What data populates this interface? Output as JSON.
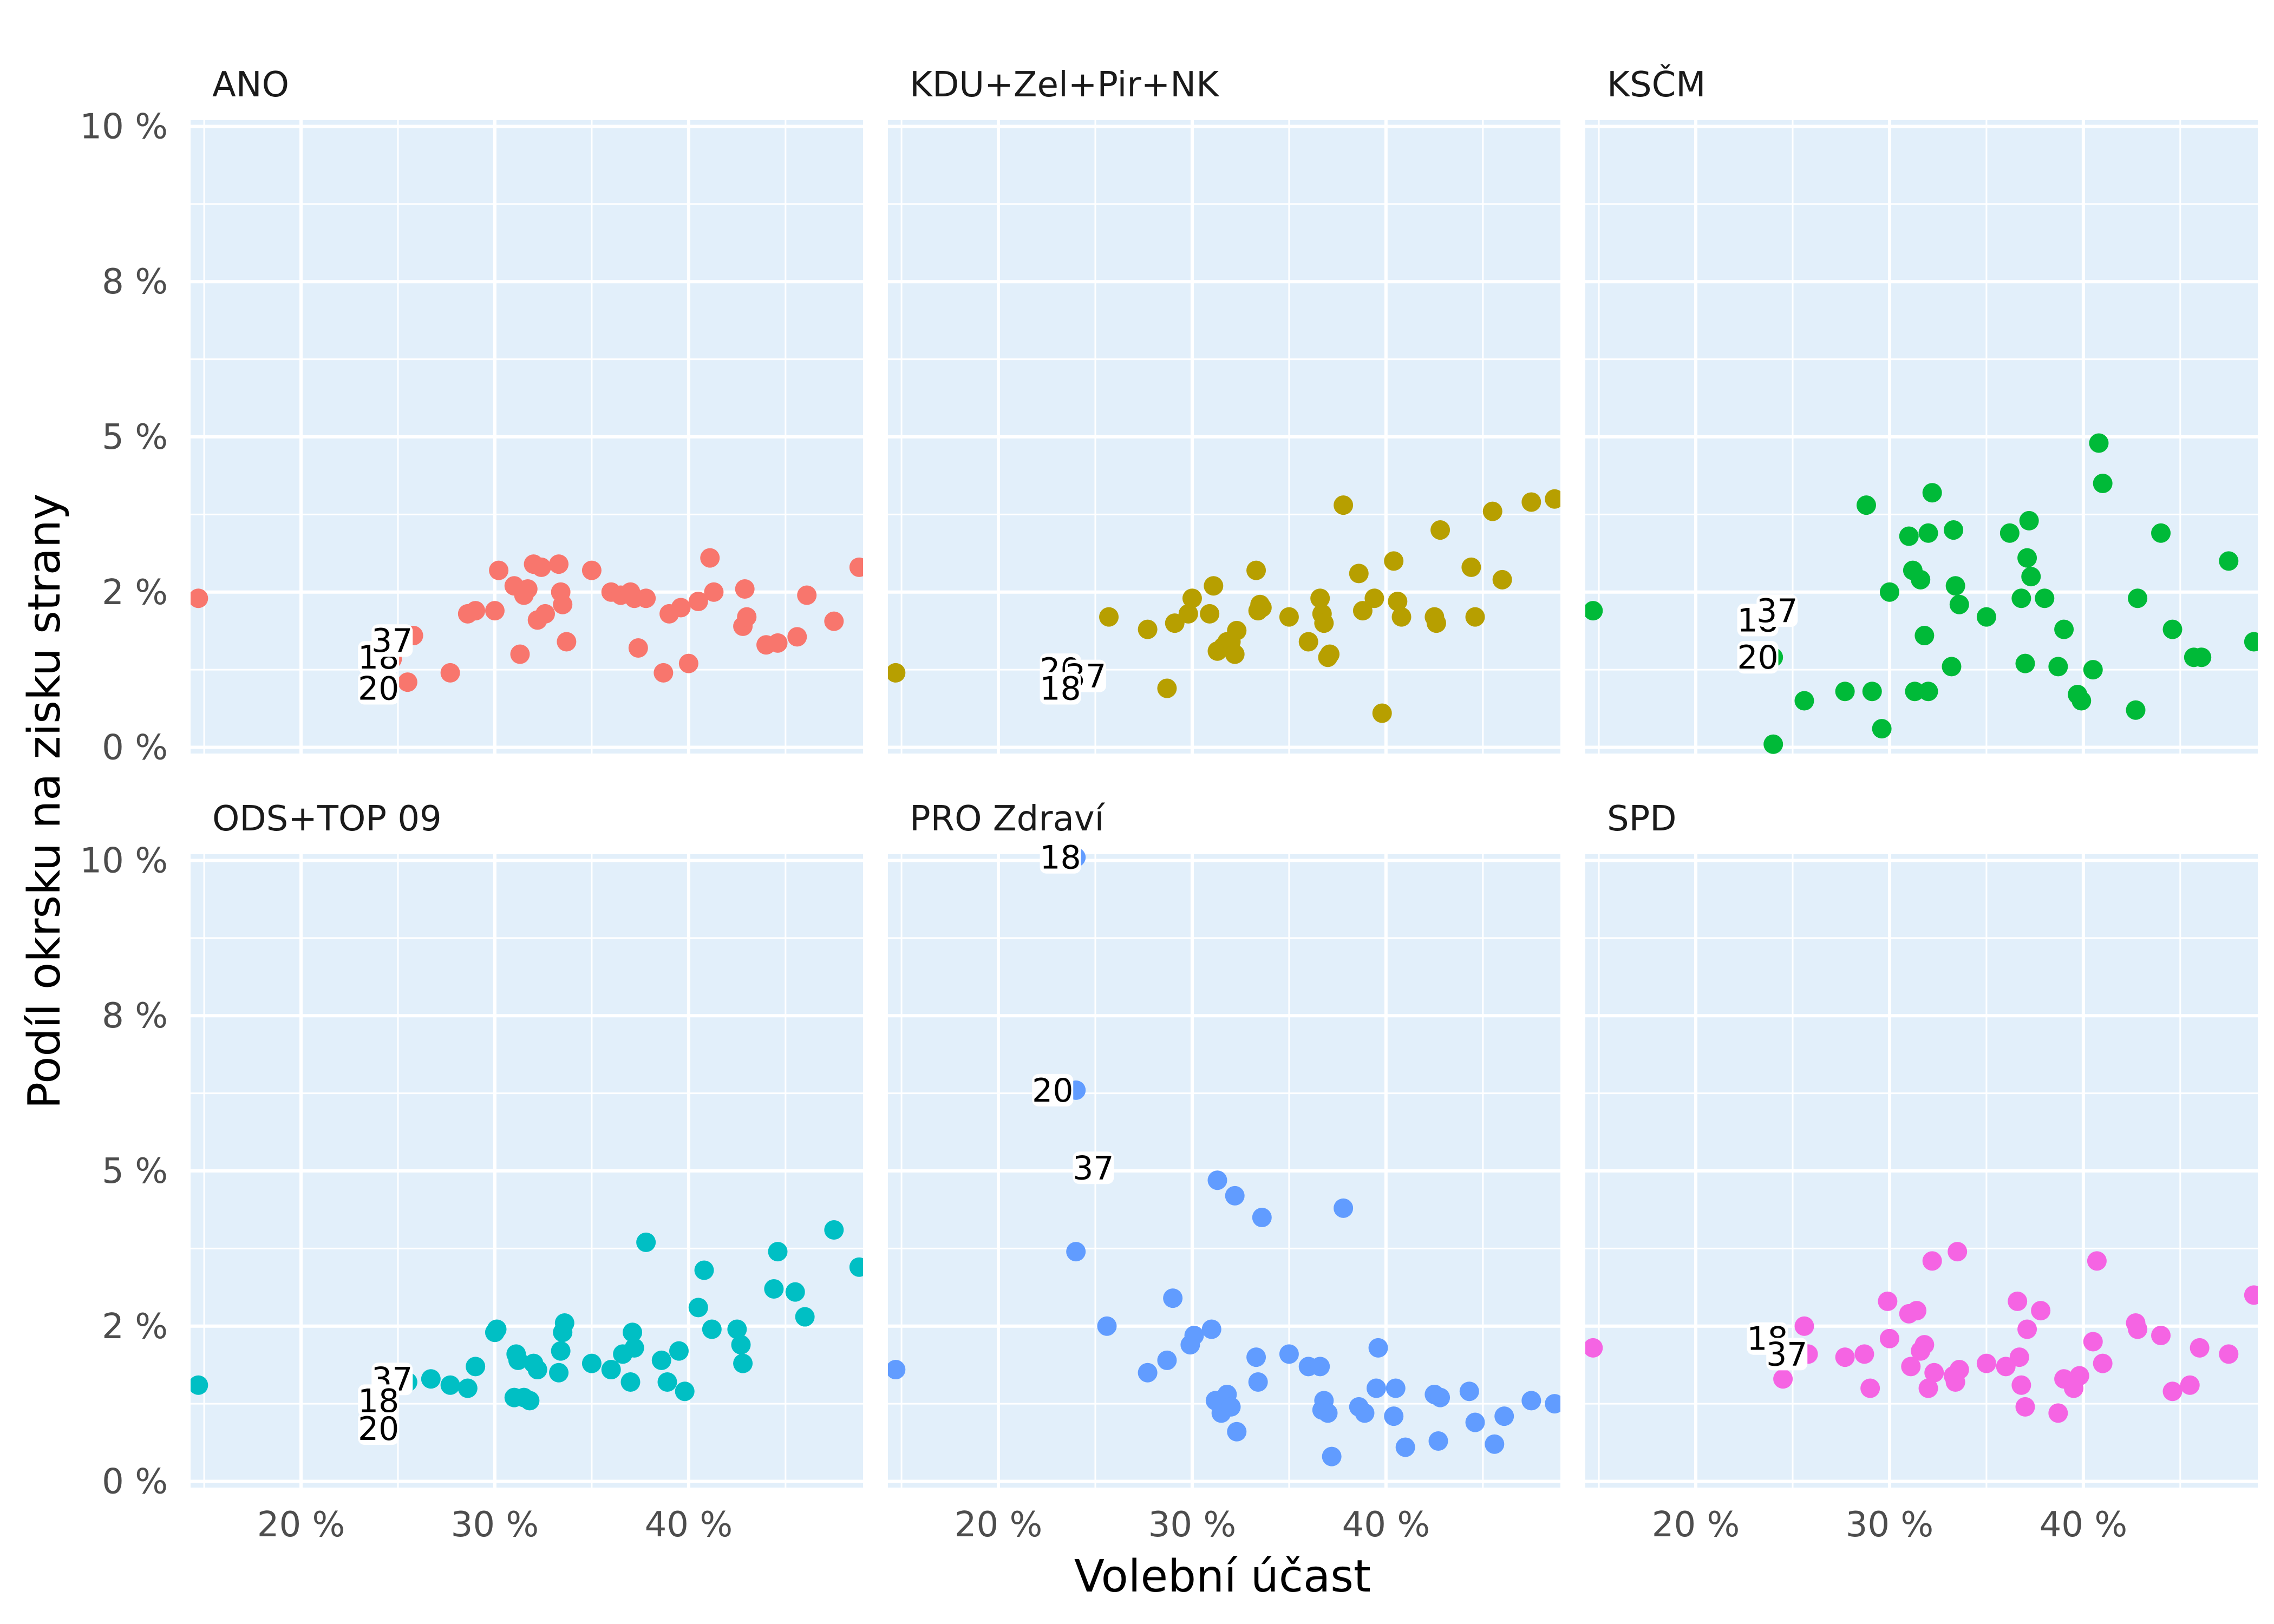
{
  "chart_data": {
    "type": "scatter",
    "xlabel": "Volební účast",
    "ylabel": "Podíl okrsku na zisku strany",
    "xlim": [
      0.143,
      0.49
    ],
    "ylim": [
      -0.1,
      10.1
    ],
    "x_ticks": [
      0.2,
      0.3,
      0.4
    ],
    "x_tick_labels": [
      "20 %",
      "30 %",
      "40 %"
    ],
    "y_ticks": [
      0,
      2.5,
      5,
      7.5,
      10
    ],
    "y_tick_labels": [
      "0 %",
      "2 %",
      "5 %",
      "8 %",
      "10 %"
    ],
    "grid": true,
    "facets": [
      {
        "name": "ANO",
        "color": "#F8766D",
        "points": [
          [
            0.147,
            2.4
          ],
          [
            0.235,
            0.9
          ],
          [
            0.238,
            1.15
          ],
          [
            0.242,
            1.2
          ],
          [
            0.247,
            1.42
          ],
          [
            0.255,
            1.05
          ],
          [
            0.258,
            1.8
          ],
          [
            0.277,
            1.2
          ],
          [
            0.286,
            2.15
          ],
          [
            0.29,
            2.2
          ],
          [
            0.3,
            2.2
          ],
          [
            0.302,
            2.85
          ],
          [
            0.31,
            2.6
          ],
          [
            0.313,
            1.5
          ],
          [
            0.315,
            2.45
          ],
          [
            0.317,
            2.55
          ],
          [
            0.32,
            2.95
          ],
          [
            0.322,
            2.05
          ],
          [
            0.324,
            2.9
          ],
          [
            0.326,
            2.15
          ],
          [
            0.333,
            2.95
          ],
          [
            0.334,
            2.5
          ],
          [
            0.335,
            2.3
          ],
          [
            0.337,
            1.7
          ],
          [
            0.35,
            2.85
          ],
          [
            0.36,
            2.5
          ],
          [
            0.365,
            2.45
          ],
          [
            0.37,
            2.5
          ],
          [
            0.372,
            2.4
          ],
          [
            0.374,
            1.6
          ],
          [
            0.378,
            2.4
          ],
          [
            0.387,
            1.2
          ],
          [
            0.39,
            2.15
          ],
          [
            0.396,
            2.25
          ],
          [
            0.4,
            1.35
          ],
          [
            0.405,
            2.35
          ],
          [
            0.411,
            3.05
          ],
          [
            0.413,
            2.5
          ],
          [
            0.429,
            2.55
          ],
          [
            0.428,
            1.95
          ],
          [
            0.43,
            2.1
          ],
          [
            0.44,
            1.65
          ],
          [
            0.446,
            1.68
          ],
          [
            0.456,
            1.78
          ],
          [
            0.461,
            2.45
          ],
          [
            0.475,
            2.03
          ],
          [
            0.488,
            2.9
          ]
        ],
        "labels": [
          {
            "text": "18",
            "x": 0.24,
            "y": 1.45
          },
          {
            "text": "37",
            "x": 0.247,
            "y": 1.72
          },
          {
            "text": "20",
            "x": 0.24,
            "y": 0.95
          }
        ]
      },
      {
        "name": "KDU+Zel+Pir+NK",
        "color": "#B79F00",
        "points": [
          [
            0.147,
            1.2
          ],
          [
            0.245,
            1.2
          ],
          [
            0.257,
            2.1
          ],
          [
            0.277,
            1.9
          ],
          [
            0.287,
            0.95
          ],
          [
            0.291,
            2.0
          ],
          [
            0.298,
            2.15
          ],
          [
            0.3,
            2.4
          ],
          [
            0.309,
            2.15
          ],
          [
            0.311,
            2.6
          ],
          [
            0.313,
            1.55
          ],
          [
            0.316,
            1.62
          ],
          [
            0.318,
            1.7
          ],
          [
            0.32,
            1.7
          ],
          [
            0.322,
            1.5
          ],
          [
            0.323,
            1.88
          ],
          [
            0.333,
            2.85
          ],
          [
            0.334,
            2.2
          ],
          [
            0.335,
            2.3
          ],
          [
            0.336,
            2.25
          ],
          [
            0.35,
            2.1
          ],
          [
            0.36,
            1.7
          ],
          [
            0.366,
            2.4
          ],
          [
            0.367,
            2.15
          ],
          [
            0.368,
            2.0
          ],
          [
            0.37,
            1.45
          ],
          [
            0.371,
            1.5
          ],
          [
            0.378,
            3.9
          ],
          [
            0.386,
            2.8
          ],
          [
            0.388,
            2.2
          ],
          [
            0.394,
            2.4
          ],
          [
            0.398,
            0.55
          ],
          [
            0.404,
            3.0
          ],
          [
            0.406,
            2.35
          ],
          [
            0.408,
            2.1
          ],
          [
            0.425,
            2.1
          ],
          [
            0.426,
            2.0
          ],
          [
            0.428,
            3.5
          ],
          [
            0.444,
            2.9
          ],
          [
            0.446,
            2.1
          ],
          [
            0.455,
            3.8
          ],
          [
            0.46,
            2.7
          ],
          [
            0.475,
            3.95
          ],
          [
            0.487,
            4.0
          ]
        ],
        "labels": [
          {
            "text": "20",
            "x": 0.232,
            "y": 1.25
          },
          {
            "text": "37",
            "x": 0.245,
            "y": 1.15
          },
          {
            "text": "18",
            "x": 0.232,
            "y": 0.95
          }
        ]
      },
      {
        "name": "KSČM",
        "color": "#00BA38",
        "points": [
          [
            0.147,
            2.2
          ],
          [
            0.24,
            1.45
          ],
          [
            0.245,
            2.15
          ],
          [
            0.24,
            0.05
          ],
          [
            0.256,
            0.75
          ],
          [
            0.277,
            0.9
          ],
          [
            0.288,
            3.9
          ],
          [
            0.291,
            0.9
          ],
          [
            0.296,
            0.3
          ],
          [
            0.3,
            2.5
          ],
          [
            0.31,
            3.4
          ],
          [
            0.312,
            2.85
          ],
          [
            0.313,
            0.9
          ],
          [
            0.316,
            2.7
          ],
          [
            0.318,
            1.8
          ],
          [
            0.32,
            0.9
          ],
          [
            0.32,
            3.45
          ],
          [
            0.322,
            4.1
          ],
          [
            0.332,
            1.3
          ],
          [
            0.333,
            3.5
          ],
          [
            0.334,
            2.6
          ],
          [
            0.336,
            2.3
          ],
          [
            0.35,
            2.1
          ],
          [
            0.362,
            3.45
          ],
          [
            0.368,
            2.4
          ],
          [
            0.37,
            1.35
          ],
          [
            0.371,
            3.05
          ],
          [
            0.372,
            3.65
          ],
          [
            0.373,
            2.75
          ],
          [
            0.38,
            2.4
          ],
          [
            0.387,
            1.3
          ],
          [
            0.39,
            1.9
          ],
          [
            0.397,
            0.85
          ],
          [
            0.399,
            0.75
          ],
          [
            0.405,
            1.25
          ],
          [
            0.408,
            4.9
          ],
          [
            0.41,
            4.25
          ],
          [
            0.427,
            0.6
          ],
          [
            0.428,
            2.4
          ],
          [
            0.44,
            3.45
          ],
          [
            0.446,
            1.9
          ],
          [
            0.457,
            1.45
          ],
          [
            0.461,
            1.45
          ],
          [
            0.475,
            3.0
          ],
          [
            0.488,
            1.7
          ]
        ],
        "labels": [
          {
            "text": "18",
            "x": 0.232,
            "y": 2.05
          },
          {
            "text": "37",
            "x": 0.242,
            "y": 2.2
          },
          {
            "text": "20",
            "x": 0.232,
            "y": 1.45
          }
        ]
      },
      {
        "name": "ODS+TOP 09",
        "color": "#00BFC4",
        "points": [
          [
            0.147,
            1.55
          ],
          [
            0.24,
            0.85
          ],
          [
            0.243,
            1.28
          ],
          [
            0.255,
            1.6
          ],
          [
            0.267,
            1.65
          ],
          [
            0.277,
            1.55
          ],
          [
            0.286,
            1.5
          ],
          [
            0.29,
            1.85
          ],
          [
            0.3,
            2.4
          ],
          [
            0.301,
            2.45
          ],
          [
            0.31,
            1.35
          ],
          [
            0.311,
            2.05
          ],
          [
            0.312,
            1.95
          ],
          [
            0.315,
            1.35
          ],
          [
            0.318,
            1.3
          ],
          [
            0.32,
            1.9
          ],
          [
            0.322,
            1.8
          ],
          [
            0.333,
            1.75
          ],
          [
            0.334,
            2.1
          ],
          [
            0.335,
            2.4
          ],
          [
            0.336,
            2.55
          ],
          [
            0.35,
            1.9
          ],
          [
            0.36,
            1.8
          ],
          [
            0.366,
            2.05
          ],
          [
            0.37,
            1.6
          ],
          [
            0.371,
            2.4
          ],
          [
            0.372,
            2.15
          ],
          [
            0.378,
            3.85
          ],
          [
            0.386,
            1.95
          ],
          [
            0.389,
            1.6
          ],
          [
            0.395,
            2.1
          ],
          [
            0.398,
            1.45
          ],
          [
            0.405,
            2.8
          ],
          [
            0.408,
            3.4
          ],
          [
            0.412,
            2.45
          ],
          [
            0.425,
            2.45
          ],
          [
            0.427,
            2.2
          ],
          [
            0.428,
            1.9
          ],
          [
            0.444,
            3.1
          ],
          [
            0.446,
            3.7
          ],
          [
            0.455,
            3.05
          ],
          [
            0.46,
            2.65
          ],
          [
            0.475,
            4.05
          ],
          [
            0.488,
            3.45
          ]
        ],
        "labels": [
          {
            "text": "37",
            "x": 0.247,
            "y": 1.65
          },
          {
            "text": "18",
            "x": 0.24,
            "y": 1.3
          },
          {
            "text": "20",
            "x": 0.24,
            "y": 0.85
          }
        ]
      },
      {
        "name": "PRO Zdraví",
        "color": "#619CFF",
        "points": [
          [
            0.147,
            1.8
          ],
          [
            0.24,
            10.05
          ],
          [
            0.24,
            6.3
          ],
          [
            0.24,
            3.7
          ],
          [
            0.246,
            5.05
          ],
          [
            0.256,
            2.5
          ],
          [
            0.277,
            1.75
          ],
          [
            0.287,
            1.95
          ],
          [
            0.29,
            2.95
          ],
          [
            0.299,
            2.2
          ],
          [
            0.301,
            2.35
          ],
          [
            0.31,
            2.45
          ],
          [
            0.312,
            1.3
          ],
          [
            0.313,
            4.85
          ],
          [
            0.315,
            1.1
          ],
          [
            0.318,
            1.4
          ],
          [
            0.32,
            1.2
          ],
          [
            0.322,
            4.6
          ],
          [
            0.323,
            0.8
          ],
          [
            0.333,
            2.0
          ],
          [
            0.334,
            1.6
          ],
          [
            0.336,
            4.25
          ],
          [
            0.35,
            2.05
          ],
          [
            0.36,
            1.85
          ],
          [
            0.366,
            1.85
          ],
          [
            0.367,
            1.15
          ],
          [
            0.368,
            1.3
          ],
          [
            0.37,
            1.1
          ],
          [
            0.372,
            0.4
          ],
          [
            0.378,
            4.4
          ],
          [
            0.386,
            1.2
          ],
          [
            0.389,
            1.1
          ],
          [
            0.395,
            1.5
          ],
          [
            0.396,
            2.15
          ],
          [
            0.404,
            1.05
          ],
          [
            0.405,
            1.5
          ],
          [
            0.41,
            0.55
          ],
          [
            0.425,
            1.4
          ],
          [
            0.427,
            0.65
          ],
          [
            0.428,
            1.35
          ],
          [
            0.443,
            1.45
          ],
          [
            0.446,
            0.95
          ],
          [
            0.456,
            0.6
          ],
          [
            0.461,
            1.05
          ],
          [
            0.475,
            1.3
          ],
          [
            0.487,
            1.25
          ]
        ],
        "labels": [
          {
            "text": "18",
            "x": 0.232,
            "y": 10.05
          },
          {
            "text": "20",
            "x": 0.228,
            "y": 6.3
          },
          {
            "text": "37",
            "x": 0.249,
            "y": 5.05
          }
        ]
      },
      {
        "name": "SPD",
        "color": "#F564E3",
        "points": [
          [
            0.147,
            2.15
          ],
          [
            0.24,
            2.25
          ],
          [
            0.242,
            1.95
          ],
          [
            0.245,
            1.65
          ],
          [
            0.248,
            2.15
          ],
          [
            0.256,
            2.5
          ],
          [
            0.258,
            2.05
          ],
          [
            0.277,
            2.0
          ],
          [
            0.287,
            2.05
          ],
          [
            0.29,
            1.5
          ],
          [
            0.299,
            2.9
          ],
          [
            0.3,
            2.3
          ],
          [
            0.31,
            2.7
          ],
          [
            0.311,
            1.85
          ],
          [
            0.314,
            2.75
          ],
          [
            0.316,
            2.1
          ],
          [
            0.318,
            2.2
          ],
          [
            0.32,
            1.5
          ],
          [
            0.322,
            3.55
          ],
          [
            0.323,
            1.75
          ],
          [
            0.333,
            1.7
          ],
          [
            0.334,
            1.6
          ],
          [
            0.335,
            3.7
          ],
          [
            0.336,
            1.8
          ],
          [
            0.35,
            1.9
          ],
          [
            0.36,
            1.85
          ],
          [
            0.366,
            2.9
          ],
          [
            0.367,
            2.0
          ],
          [
            0.368,
            1.55
          ],
          [
            0.37,
            1.2
          ],
          [
            0.371,
            2.45
          ],
          [
            0.378,
            2.75
          ],
          [
            0.387,
            1.1
          ],
          [
            0.39,
            1.65
          ],
          [
            0.395,
            1.5
          ],
          [
            0.398,
            1.7
          ],
          [
            0.405,
            2.25
          ],
          [
            0.407,
            3.55
          ],
          [
            0.41,
            1.9
          ],
          [
            0.427,
            2.55
          ],
          [
            0.428,
            2.45
          ],
          [
            0.44,
            2.35
          ],
          [
            0.446,
            1.45
          ],
          [
            0.455,
            1.55
          ],
          [
            0.46,
            2.15
          ],
          [
            0.475,
            2.05
          ],
          [
            0.488,
            3.0
          ]
        ],
        "labels": [
          {
            "text": "18",
            "x": 0.237,
            "y": 2.3
          },
          {
            "text": "37",
            "x": 0.247,
            "y": 2.05
          }
        ]
      }
    ]
  }
}
